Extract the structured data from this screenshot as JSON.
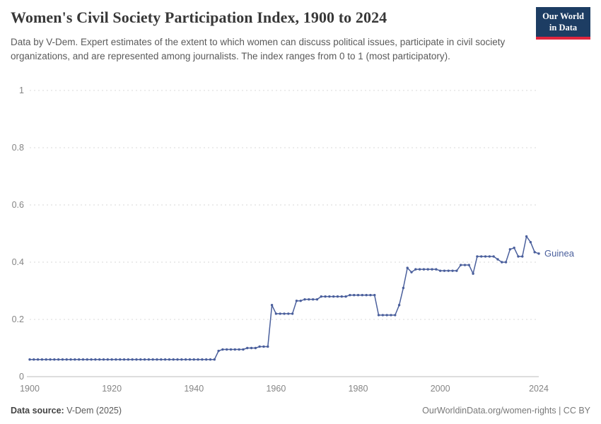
{
  "header": {
    "title": "Women's Civil Society Participation Index, 1900 to 2024",
    "subtitle": "Data by V-Dem. Expert estimates of the extent to which women can discuss political issues, participate in civil society organizations, and are represented among journalists. The index ranges from 0 to 1 (most participatory)."
  },
  "logo": {
    "line1": "Our World",
    "line2": "in Data",
    "bg_color": "#1d3d63",
    "accent_color": "#e0263e"
  },
  "chart_data": {
    "type": "line",
    "title": "Women's Civil Society Participation Index, 1900 to 2024",
    "xlabel": "",
    "ylabel": "",
    "x_range": [
      1900,
      2024
    ],
    "ylim": [
      0,
      1
    ],
    "yticks": [
      0,
      0.2,
      0.4,
      0.6,
      0.8,
      1
    ],
    "ytick_labels": [
      "0",
      "0.2",
      "0.4",
      "0.6",
      "0.8",
      "1"
    ],
    "xticks": [
      1900,
      1920,
      1940,
      1960,
      1980,
      2000,
      2024
    ],
    "grid": "horizontal-dashed",
    "legend": "end-of-line-label",
    "series": [
      {
        "name": "Guinea",
        "color": "#4a5f9c",
        "x_start": 1900,
        "x_step": 1,
        "values": [
          0.06,
          0.06,
          0.06,
          0.06,
          0.06,
          0.06,
          0.06,
          0.06,
          0.06,
          0.06,
          0.06,
          0.06,
          0.06,
          0.06,
          0.06,
          0.06,
          0.06,
          0.06,
          0.06,
          0.06,
          0.06,
          0.06,
          0.06,
          0.06,
          0.06,
          0.06,
          0.06,
          0.06,
          0.06,
          0.06,
          0.06,
          0.06,
          0.06,
          0.06,
          0.06,
          0.06,
          0.06,
          0.06,
          0.06,
          0.06,
          0.06,
          0.06,
          0.06,
          0.06,
          0.06,
          0.06,
          0.09,
          0.095,
          0.095,
          0.095,
          0.095,
          0.095,
          0.095,
          0.1,
          0.1,
          0.1,
          0.105,
          0.105,
          0.105,
          0.25,
          0.22,
          0.22,
          0.22,
          0.22,
          0.22,
          0.265,
          0.265,
          0.27,
          0.27,
          0.27,
          0.27,
          0.28,
          0.28,
          0.28,
          0.28,
          0.28,
          0.28,
          0.28,
          0.285,
          0.285,
          0.285,
          0.285,
          0.285,
          0.285,
          0.285,
          0.215,
          0.215,
          0.215,
          0.215,
          0.215,
          0.25,
          0.31,
          0.38,
          0.365,
          0.375,
          0.375,
          0.375,
          0.375,
          0.375,
          0.375,
          0.37,
          0.37,
          0.37,
          0.37,
          0.37,
          0.39,
          0.39,
          0.39,
          0.36,
          0.42,
          0.42,
          0.42,
          0.42,
          0.42,
          0.41,
          0.4,
          0.4,
          0.445,
          0.45,
          0.42,
          0.42,
          0.49,
          0.47,
          0.435,
          0.43
        ]
      }
    ]
  },
  "footer": {
    "source_label": "Data source:",
    "source_value": " V-Dem (2025)",
    "link": "OurWorldinData.org/women-rights",
    "separator": " | ",
    "license": "CC BY"
  }
}
